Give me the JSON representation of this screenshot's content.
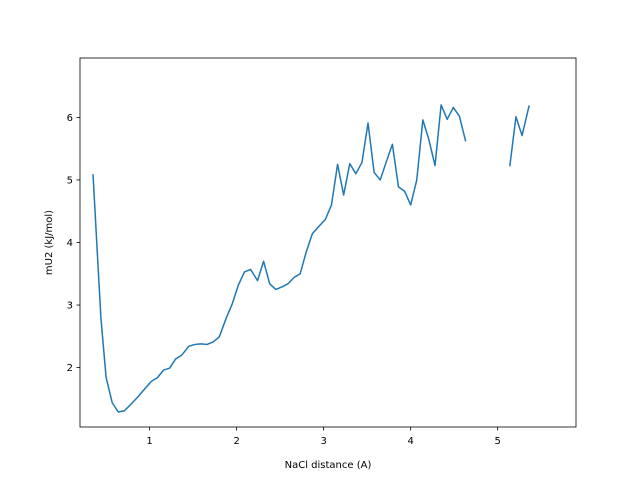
{
  "chart_data": {
    "type": "line",
    "title": "",
    "xlabel": "NaCl distance (A)",
    "ylabel": "mU2 (kJ/mol)",
    "xlim": [
      0.2,
      5.9
    ],
    "ylim": [
      1.05,
      6.95
    ],
    "xticks": [
      1,
      2,
      3,
      4,
      5
    ],
    "yticks": [
      2,
      3,
      4,
      5,
      6
    ],
    "grid": false,
    "legend": "none",
    "color": "#1f77b4",
    "series": [
      {
        "segments": [
          [
            [
              0.35,
              5.08
            ],
            [
              0.44,
              2.8
            ],
            [
              0.5,
              1.84
            ],
            [
              0.57,
              1.44
            ],
            [
              0.64,
              1.29
            ],
            [
              0.71,
              1.31
            ],
            [
              0.79,
              1.42
            ],
            [
              0.87,
              1.54
            ],
            [
              0.95,
              1.67
            ],
            [
              1.02,
              1.78
            ],
            [
              1.09,
              1.84
            ],
            [
              1.16,
              1.96
            ],
            [
              1.23,
              1.99
            ],
            [
              1.3,
              2.14
            ],
            [
              1.37,
              2.2
            ],
            [
              1.45,
              2.34
            ],
            [
              1.52,
              2.37
            ],
            [
              1.59,
              2.38
            ],
            [
              1.66,
              2.37
            ],
            [
              1.73,
              2.41
            ],
            [
              1.8,
              2.49
            ],
            [
              1.88,
              2.79
            ],
            [
              1.95,
              3.02
            ],
            [
              2.02,
              3.32
            ],
            [
              2.09,
              3.53
            ],
            [
              2.16,
              3.57
            ],
            [
              2.24,
              3.39
            ],
            [
              2.31,
              3.7
            ],
            [
              2.38,
              3.34
            ],
            [
              2.45,
              3.25
            ],
            [
              2.52,
              3.29
            ],
            [
              2.59,
              3.34
            ],
            [
              2.66,
              3.44
            ],
            [
              2.73,
              3.5
            ],
            [
              2.8,
              3.85
            ],
            [
              2.87,
              4.14
            ],
            [
              2.94,
              4.25
            ],
            [
              3.02,
              4.37
            ],
            [
              3.09,
              4.6
            ],
            [
              3.16,
              5.25
            ],
            [
              3.23,
              4.76
            ],
            [
              3.3,
              5.26
            ],
            [
              3.37,
              5.1
            ],
            [
              3.44,
              5.28
            ],
            [
              3.51,
              5.91
            ],
            [
              3.58,
              5.12
            ],
            [
              3.65,
              5.0
            ],
            [
              3.72,
              5.29
            ],
            [
              3.79,
              5.57
            ],
            [
              3.86,
              4.89
            ],
            [
              3.93,
              4.82
            ],
            [
              4.0,
              4.6
            ],
            [
              4.07,
              5.0
            ],
            [
              4.14,
              5.96
            ],
            [
              4.21,
              5.64
            ],
            [
              4.28,
              5.23
            ],
            [
              4.35,
              6.2
            ],
            [
              4.42,
              5.97
            ],
            [
              4.49,
              6.16
            ],
            [
              4.56,
              6.02
            ],
            [
              4.63,
              5.63
            ]
          ],
          [
            [
              5.14,
              5.23
            ],
            [
              5.21,
              6.01
            ],
            [
              5.28,
              5.71
            ],
            [
              5.36,
              6.18
            ]
          ]
        ]
      }
    ]
  }
}
